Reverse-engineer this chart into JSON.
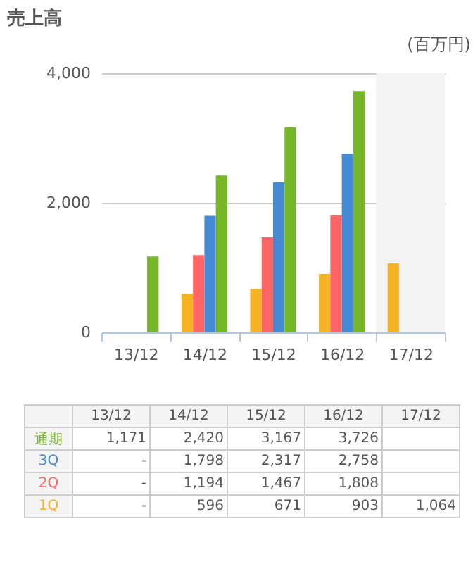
{
  "chart_data": {
    "type": "bar",
    "title": "売上高",
    "ylabel": "(百万円)",
    "categories": [
      "13/12",
      "14/12",
      "15/12",
      "16/12",
      "17/12"
    ],
    "series": [
      {
        "name": "1Q",
        "color": "#f6b324",
        "values": [
          null,
          596,
          671,
          903,
          1064
        ],
        "value_labels": [
          "-",
          "596",
          "671",
          "903",
          "1,064"
        ]
      },
      {
        "name": "2Q",
        "color": "#ff6666",
        "values": [
          null,
          1194,
          1467,
          1808,
          null
        ],
        "value_labels": [
          "-",
          "1,194",
          "1,467",
          "1,808",
          null
        ]
      },
      {
        "name": "3Q",
        "color": "#468ad4",
        "values": [
          null,
          1798,
          2317,
          2758,
          null
        ],
        "value_labels": [
          "-",
          "1,798",
          "2,317",
          "2,758",
          null
        ]
      },
      {
        "name": "通期",
        "color": "#76b72a",
        "values": [
          1171,
          2420,
          3167,
          3726,
          null
        ],
        "value_labels": [
          "1,171",
          "2,420",
          "3,167",
          "3,726",
          null
        ]
      }
    ],
    "ylim": [
      0,
      4000
    ],
    "yticks": [
      0,
      {
        "value": 2000,
        "label": "2,000"
      },
      {
        "value": 4000,
        "label": "4,000"
      }
    ],
    "grid": "y",
    "bands": [
      {
        "axis": "x",
        "from": "17/12",
        "to": "17/12",
        "color": "#f3f3f3"
      }
    ]
  }
}
